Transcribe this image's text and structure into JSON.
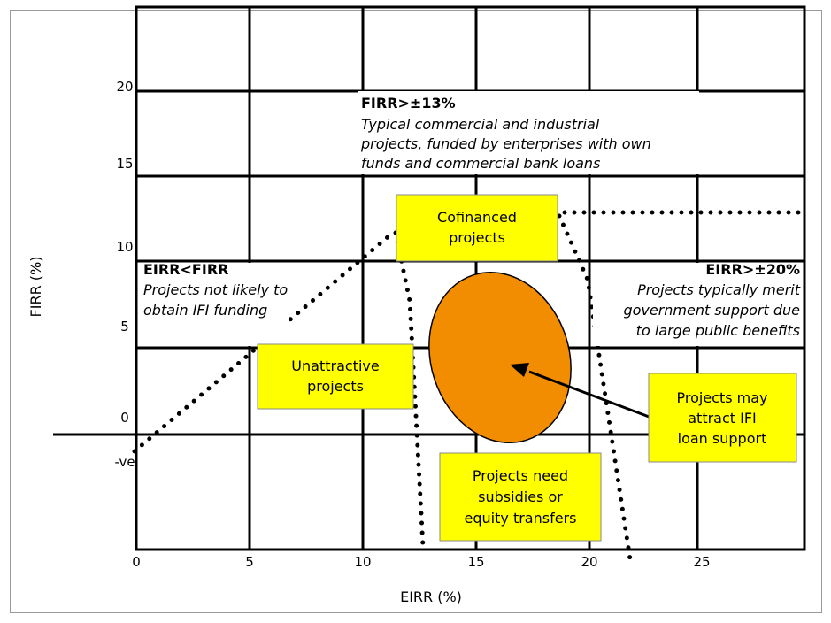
{
  "axes": {
    "xlabel": "EIRR (%)",
    "ylabel": "FIRR (%)",
    "x_ticks": [
      "0",
      "5",
      "10",
      "15",
      "20",
      "25"
    ],
    "y_ticks": [
      "20",
      "15",
      "10",
      "5",
      "0",
      "-ve"
    ]
  },
  "regions": {
    "top": {
      "title": "FIRR>±13%",
      "lines": [
        "Typical commercial and industrial",
        "projects, funded by enterprises with own",
        "funds and commercial bank loans"
      ]
    },
    "left": {
      "title": "EIRR<FIRR",
      "lines": [
        "Projects not likely to",
        "obtain IFI funding"
      ]
    },
    "right": {
      "title": "EIRR>±20%",
      "lines": [
        "Projects typically merit",
        "government support due",
        "to large public benefits"
      ]
    }
  },
  "boxes": {
    "cofinanced": [
      "Cofinanced",
      "projects"
    ],
    "unattractive": [
      "Unattractive",
      "projects"
    ],
    "subsidies": [
      "Projects need",
      "subsidies or",
      "equity transfers"
    ],
    "ifi": [
      "Projects may",
      "attract IFI",
      "loan support"
    ]
  },
  "colors": {
    "box_fill": "#ffff00",
    "ellipse_fill": "#f28c00"
  }
}
